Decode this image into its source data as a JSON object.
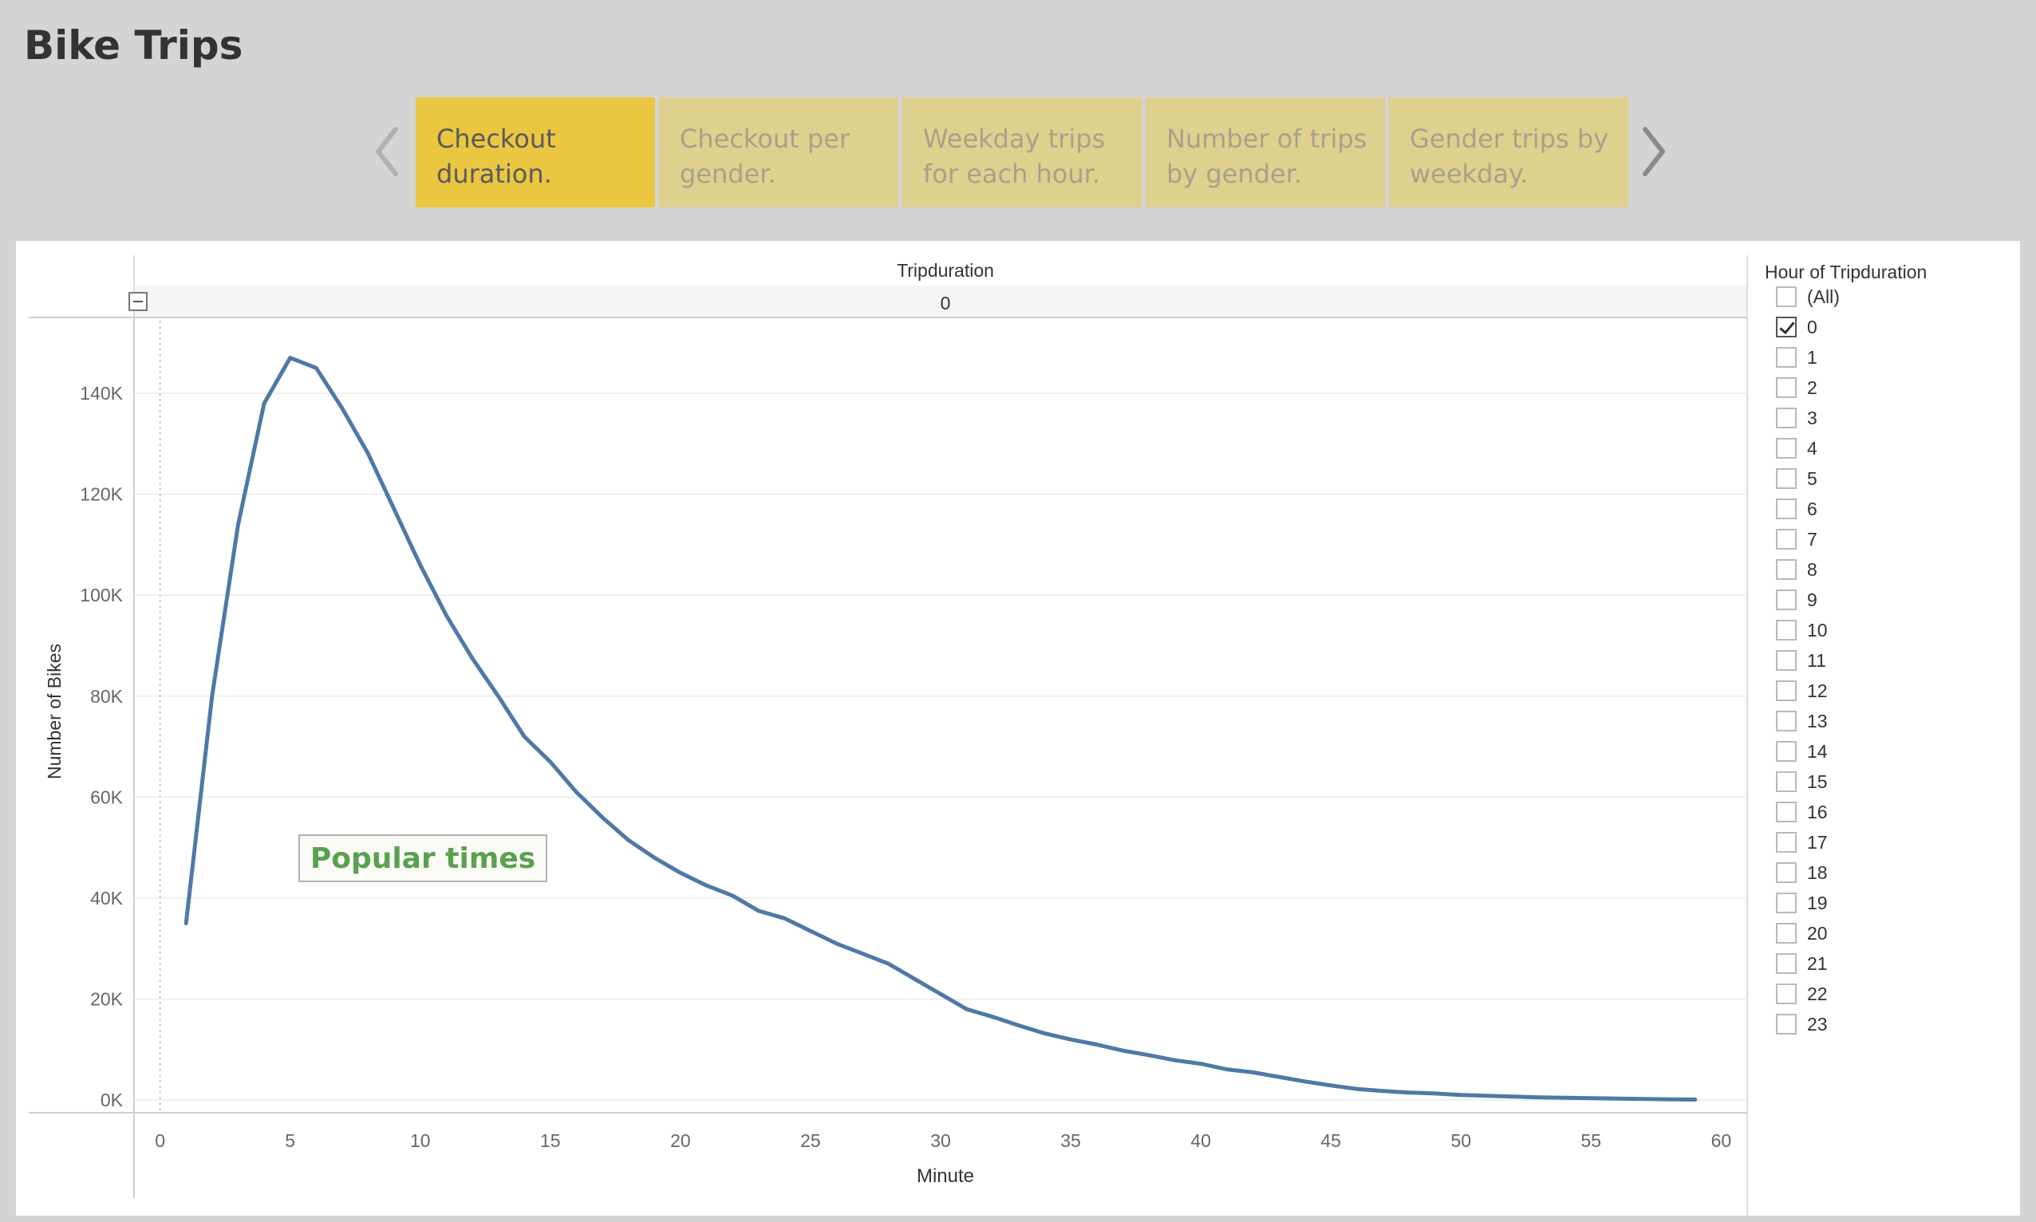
{
  "page": {
    "title": "Bike Trips"
  },
  "story": {
    "tabs": [
      {
        "label": "Checkout\nduration.",
        "active": true
      },
      {
        "label": "Checkout per\ngender.",
        "active": false
      },
      {
        "label": "Weekday trips\nfor each hour.",
        "active": false
      },
      {
        "label": "Number of trips\nby gender.",
        "active": false
      },
      {
        "label": "Gender trips by\nweekday.",
        "active": false
      }
    ]
  },
  "chart_data": {
    "type": "line",
    "header_title": "Tripduration",
    "header_value": "0",
    "xlabel": "Minute",
    "ylabel": "Number of Bikes",
    "xlim": [
      -1,
      61
    ],
    "ylim": [
      -2500,
      155000
    ],
    "xticks": [
      0,
      5,
      10,
      15,
      20,
      25,
      30,
      35,
      40,
      45,
      50,
      55,
      60
    ],
    "yticks": [
      0,
      20000,
      40000,
      60000,
      80000,
      100000,
      120000,
      140000
    ],
    "ytick_labels": [
      "0K",
      "20K",
      "40K",
      "60K",
      "80K",
      "100K",
      "120K",
      "140K"
    ],
    "annotation": "Popular times",
    "grid": true,
    "line_color": "#4e79a7",
    "series": [
      {
        "x": [
          1,
          2,
          3,
          4,
          5,
          6,
          7,
          8,
          9,
          10,
          11,
          12,
          13,
          14,
          15,
          16,
          17,
          18,
          19,
          20,
          21,
          22,
          23,
          24,
          25,
          26,
          27,
          28,
          29,
          30,
          31,
          32,
          33,
          34,
          35,
          36,
          37,
          38,
          39,
          40,
          41,
          42,
          43,
          44,
          45,
          46,
          47,
          48,
          49,
          50,
          51,
          52,
          53,
          54,
          55,
          56,
          57,
          58,
          59
        ],
        "values": [
          35000,
          80000,
          114000,
          138000,
          147000,
          145000,
          137000,
          128000,
          117000,
          106000,
          96000,
          87500,
          80000,
          72000,
          67000,
          61000,
          56000,
          51500,
          48000,
          45000,
          42500,
          40500,
          37500,
          36000,
          33500,
          31000,
          29000,
          27000,
          24000,
          21000,
          18000,
          16500,
          14800,
          13200,
          12000,
          11000,
          9800,
          8900,
          7900,
          7200,
          6100,
          5500,
          4600,
          3700,
          2900,
          2200,
          1800,
          1500,
          1300,
          1000,
          850,
          700,
          550,
          450,
          380,
          300,
          220,
          150,
          100
        ]
      }
    ]
  },
  "filter": {
    "title": "Hour of Tripduration",
    "items": [
      {
        "label": "(All)",
        "checked": false
      },
      {
        "label": "0",
        "checked": true
      },
      {
        "label": "1",
        "checked": false
      },
      {
        "label": "2",
        "checked": false
      },
      {
        "label": "3",
        "checked": false
      },
      {
        "label": "4",
        "checked": false
      },
      {
        "label": "5",
        "checked": false
      },
      {
        "label": "6",
        "checked": false
      },
      {
        "label": "7",
        "checked": false
      },
      {
        "label": "8",
        "checked": false
      },
      {
        "label": "9",
        "checked": false
      },
      {
        "label": "10",
        "checked": false
      },
      {
        "label": "11",
        "checked": false
      },
      {
        "label": "12",
        "checked": false
      },
      {
        "label": "13",
        "checked": false
      },
      {
        "label": "14",
        "checked": false
      },
      {
        "label": "15",
        "checked": false
      },
      {
        "label": "16",
        "checked": false
      },
      {
        "label": "17",
        "checked": false
      },
      {
        "label": "18",
        "checked": false
      },
      {
        "label": "19",
        "checked": false
      },
      {
        "label": "20",
        "checked": false
      },
      {
        "label": "21",
        "checked": false
      },
      {
        "label": "22",
        "checked": false
      },
      {
        "label": "23",
        "checked": false
      }
    ]
  }
}
